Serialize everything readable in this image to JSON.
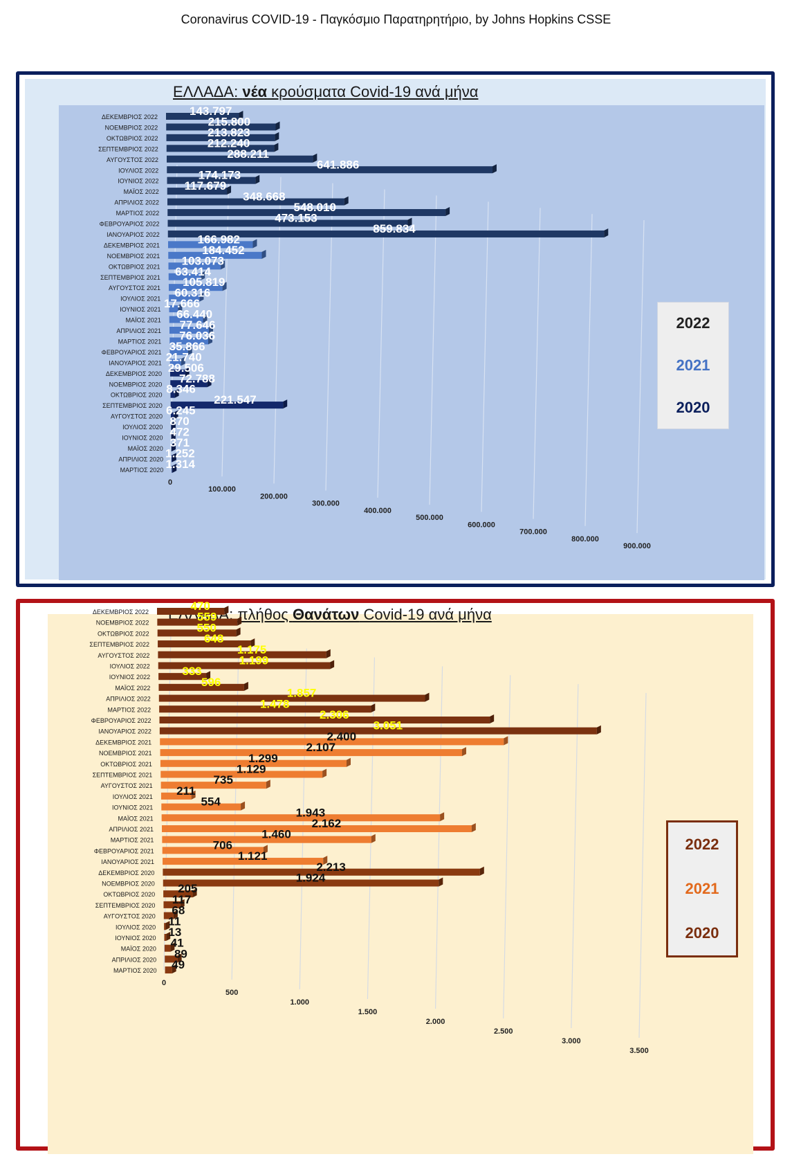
{
  "page_title": "Coronavirus COVID-19  -  Παγκόσμιο Παρατηρητήριο,  by Johns Hopkins CSSE",
  "chart_data": [
    {
      "type": "bar",
      "orientation": "horizontal",
      "title_prefix": "ΕΛΛΑΔΑ: ",
      "title_emph": "νέα",
      "title_suffix": " κρούσματα Covid-19 ανά μήνα",
      "categories": [
        "ΔΕΚΕΜΒΡΙΟΣ 2022",
        "ΝΟΕΜΒΡΙΟΣ 2022",
        "ΟΚΤΩΒΡΙΟΣ 2022",
        "ΣΕΠΤΕΜΒΡΙΟΣ 2022",
        "ΑΥΓΟΥΣΤΟΣ 2022",
        "ΙΟΥΛΙΟΣ 2022",
        "ΙΟΥΝΙΟΣ 2022",
        "ΜΑΪΟΣ 2022",
        "ΑΠΡΙΛΙΟΣ 2022",
        "ΜΑΡΤΙΟΣ 2022",
        "ΦΕΒΡΟΥΑΡΙΟΣ 2022",
        "ΙΑΝΟΥΑΡΙΟΣ 2022",
        "ΔΕΚΕΜΒΡΙΟΣ 2021",
        "ΝΟΕΜΒΡΙΟΣ 2021",
        "ΟΚΤΩΒΡΙΟΣ 2021",
        "ΣΕΠΤΕΜΒΡΙΟΣ 2021",
        "ΑΥΓΟΥΣΤΟΣ 2021",
        "ΙΟΥΛΙΟΣ 2021",
        "ΙΟΥΝΙΟΣ 2021",
        "ΜΑΪΟΣ 2021",
        "ΑΠΡΙΛΙΟΣ 2021",
        "ΜΑΡΤΙΟΣ 2021",
        "ΦΕΒΡΟΥΑΡΙΟΣ 2021",
        "ΙΑΝΟΥΑΡΙΟΣ 2021",
        "ΔΕΚΕΜΒΡΙΟΣ 2020",
        "ΝΟΕΜΒΡΙΟΣ 2020",
        "ΟΚΤΩΒΡΙΟΣ 2020",
        "ΣΕΠΤΕΜΒΡΙΟΣ 2020",
        "ΑΥΓΟΥΣΤΟΣ 2020",
        "ΙΟΥΛΙΟΣ 2020",
        "ΙΟΥΝΙΟΣ 2020",
        "ΜΑΪΟΣ 2020",
        "ΑΠΡΙΛΙΟΣ 2020",
        "ΜΑΡΤΙΟΣ 2020"
      ],
      "years": [
        "2022",
        "2022",
        "2022",
        "2022",
        "2022",
        "2022",
        "2022",
        "2022",
        "2022",
        "2022",
        "2022",
        "2022",
        "2021",
        "2021",
        "2021",
        "2021",
        "2021",
        "2021",
        "2021",
        "2021",
        "2021",
        "2021",
        "2021",
        "2021",
        "2020",
        "2020",
        "2020",
        "2020",
        "2020",
        "2020",
        "2020",
        "2020",
        "2020",
        "2020"
      ],
      "values": [
        143797,
        215800,
        213823,
        212240,
        288211,
        641886,
        174173,
        117679,
        348668,
        548010,
        473153,
        859834,
        166982,
        184452,
        103073,
        63414,
        105819,
        60316,
        17666,
        66440,
        77646,
        76036,
        35866,
        21740,
        29506,
        72788,
        8346,
        221547,
        6245,
        870,
        472,
        371,
        1252,
        1314
      ],
      "value_labels": [
        "143.797",
        "215.800",
        "213.823",
        "212.240",
        "288.211",
        "641.886",
        "174.173",
        "117.679",
        "348.668",
        "548.010",
        "473.153",
        "859.834",
        "166.982",
        "184.452",
        "103.073",
        "63.414",
        "105.819",
        "60.316",
        "17.666",
        "66.440",
        "77.646",
        "76.036",
        "35.866",
        "21.740",
        "29.506",
        "72.788",
        "8.346",
        "221.547",
        "6.245",
        "870",
        "472",
        "371",
        "1.252",
        "1.314"
      ],
      "x_ticks": [
        "0",
        "100.000",
        "200.000",
        "300.000",
        "400.000",
        "500.000",
        "600.000",
        "700.000",
        "800.000",
        "900.000"
      ],
      "xlim": [
        0,
        900000
      ],
      "legend": [
        "2022",
        "2021",
        "2020"
      ],
      "legend_colors": [
        "#222222",
        "#4472c4",
        "#0b1f5c"
      ],
      "bar_colors": {
        "2022": "#1f3864",
        "2021": "#4a78c8",
        "2020": "#13286b"
      },
      "label_color": "#ffffff"
    },
    {
      "type": "bar",
      "orientation": "horizontal",
      "title_prefix": "ΕΛΛΑΔΑ: πλήθος ",
      "title_emph": "Θανάτων",
      "title_suffix": " Covid-19 ανά μήνα",
      "categories": [
        "ΔΕΚΕΜΒΡΙΟΣ 2022",
        "ΝΟΕΜΒΡΙΟΣ 2022",
        "ΟΚΤΩΒΡΙΟΣ 2022",
        "ΣΕΠΤΕΜΒΡΙΟΣ 2022",
        "ΑΥΓΟΥΣΤΟΣ 2022",
        "ΙΟΥΛΙΟΣ 2022",
        "ΙΟΥΝΙΟΣ 2022",
        "ΜΑΪΟΣ 2022",
        "ΑΠΡΙΛΙΟΣ 2022",
        "ΜΑΡΤΙΟΣ 2022",
        "ΦΕΒΡΟΥΑΡΙΟΣ 2022",
        "ΙΑΝΟΥΑΡΙΟΣ 2022",
        "ΔΕΚΕΜΒΡΙΟΣ 2021",
        "ΝΟΕΜΒΡΙΟΣ 2021",
        "ΟΚΤΩΒΡΙΟΣ 2021",
        "ΣΕΠΤΕΜΒΡΙΟΣ 2021",
        "ΑΥΓΟΥΣΤΟΣ 2021",
        "ΙΟΥΛΙΟΣ 2021",
        "ΙΟΥΝΙΟΣ 2021",
        "ΜΑΪΟΣ 2021",
        "ΑΠΡΙΛΙΟΣ 2021",
        "ΜΑΡΤΙΟΣ 2021",
        "ΦΕΒΡΟΥΑΡΙΟΣ 2021",
        "ΙΑΝΟΥΑΡΙΟΣ 2021",
        "ΔΕΚΕΜΒΡΙΟΣ 2020",
        "ΝΟΕΜΒΡΙΟΣ 2020",
        "ΟΚΤΩΒΡΙΟΣ 2020",
        "ΣΕΠΤΕΜΒΡΙΟΣ 2020",
        "ΑΥΓΟΥΣΤΟΣ 2020",
        "ΙΟΥΛΙΟΣ 2020",
        "ΙΟΥΝΙΟΣ 2020",
        "ΜΑΪΟΣ 2020",
        "ΑΠΡΙΛΙΟΣ 2020",
        "ΜΑΡΤΙΟΣ 2020"
      ],
      "years": [
        "2022",
        "2022",
        "2022",
        "2022",
        "2022",
        "2022",
        "2022",
        "2022",
        "2022",
        "2022",
        "2022",
        "2022",
        "2021",
        "2021",
        "2021",
        "2021",
        "2021",
        "2021",
        "2021",
        "2021",
        "2021",
        "2021",
        "2021",
        "2021",
        "2020",
        "2020",
        "2020",
        "2020",
        "2020",
        "2020",
        "2020",
        "2020",
        "2020",
        "2020"
      ],
      "values": [
        470,
        559,
        550,
        648,
        1175,
        1199,
        333,
        596,
        1857,
        1478,
        2306,
        3051,
        2400,
        2107,
        1299,
        1129,
        735,
        211,
        554,
        1943,
        2162,
        1460,
        706,
        1121,
        2213,
        1924,
        205,
        117,
        68,
        11,
        13,
        41,
        89,
        49
      ],
      "value_labels": [
        "470",
        "559",
        "550",
        "648",
        "1.175",
        "1.199",
        "333",
        "596",
        "1.857",
        "1.478",
        "2.306",
        "3.051",
        "2.400",
        "2.107",
        "1.299",
        "1.129",
        "735",
        "211",
        "554",
        "1.943",
        "2.162",
        "1.460",
        "706",
        "1.121",
        "2.213",
        "1.924",
        "205",
        "117",
        "68",
        "11",
        "13",
        "41",
        "89",
        "49"
      ],
      "x_ticks": [
        "0",
        "500",
        "1.000",
        "1.500",
        "2.000",
        "2.500",
        "3.000",
        "3.500"
      ],
      "xlim": [
        0,
        3500
      ],
      "legend": [
        "2022",
        "2021",
        "2020"
      ],
      "legend_colors": [
        "#7a2e0e",
        "#e2691c",
        "#7a2e0e"
      ],
      "bar_colors": {
        "2022": "#7b3210",
        "2021": "#ee7d31",
        "2020": "#8a3a10"
      },
      "label_colors": {
        "2022": "#ffff00",
        "2021": "#111111",
        "2020": "#111111"
      }
    }
  ]
}
